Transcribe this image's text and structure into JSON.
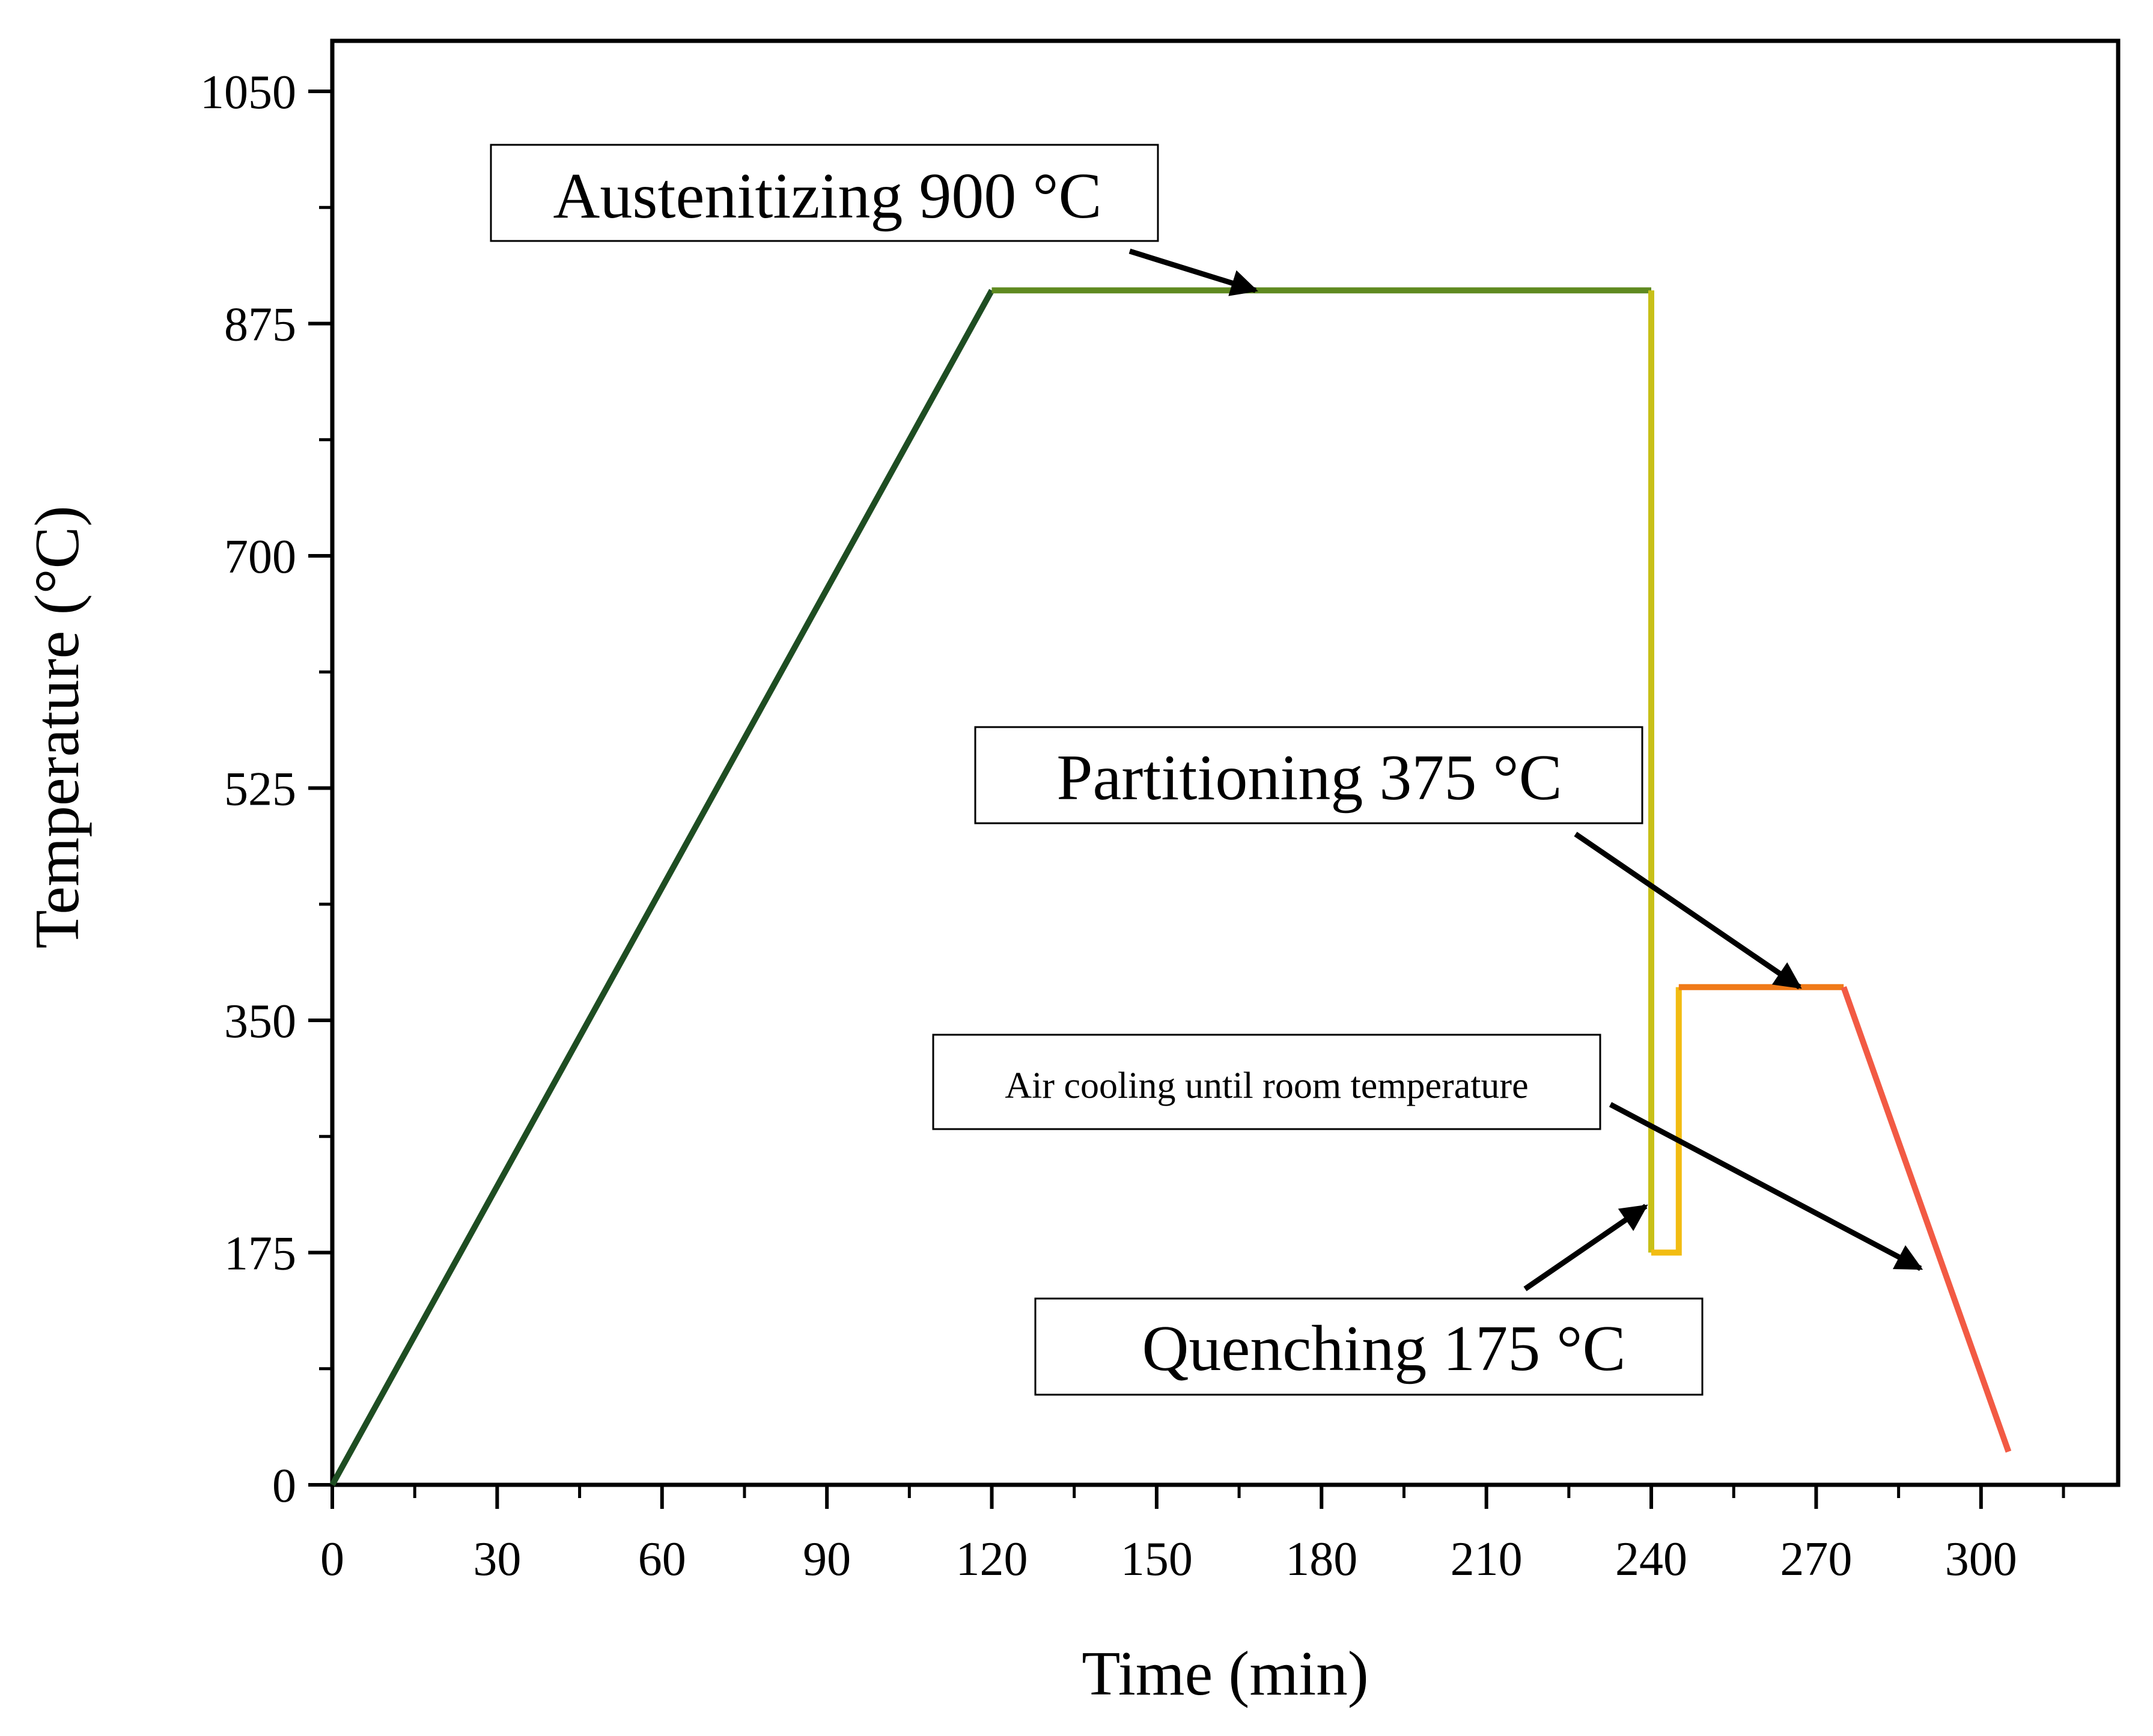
{
  "chart_data": {
    "type": "line",
    "title": "",
    "xlabel": "Time (min)",
    "ylabel": "Temperature (°C)",
    "xlim": [
      0,
      325
    ],
    "ylim": [
      0,
      1100
    ],
    "x_ticks": [
      0,
      30,
      60,
      90,
      120,
      150,
      180,
      210,
      240,
      270,
      300
    ],
    "y_ticks": [
      0,
      175,
      350,
      525,
      700,
      875,
      1050
    ],
    "grid": false,
    "legend": false,
    "series": [
      {
        "name": "Heating",
        "color": "#1e4d22",
        "points": [
          [
            0,
            0
          ],
          [
            120,
            900
          ]
        ]
      },
      {
        "name": "Austenitizing",
        "color": "#5f8a20",
        "points": [
          [
            120,
            900
          ],
          [
            240,
            900
          ]
        ]
      },
      {
        "name": "Quench drop",
        "color": "#c8c018",
        "points": [
          [
            240,
            900
          ],
          [
            240,
            175
          ]
        ]
      },
      {
        "name": "Quenching",
        "color": "#f2bc12",
        "points": [
          [
            240,
            175
          ],
          [
            245,
            175
          ],
          [
            245,
            375
          ]
        ]
      },
      {
        "name": "Partitioning",
        "color": "#f07a18",
        "points": [
          [
            245,
            375
          ],
          [
            275,
            375
          ]
        ]
      },
      {
        "name": "Air cooling",
        "color": "#f25a44",
        "points": [
          [
            275,
            375
          ],
          [
            305,
            25
          ]
        ]
      }
    ],
    "annotations": [
      {
        "text": "Austenitizing 900 °C",
        "size": "large",
        "target": [
          168,
          900
        ]
      },
      {
        "text": "Partitioning 375 °C",
        "size": "large",
        "target": [
          267,
          375
        ]
      },
      {
        "text": "Air cooling until room temperature",
        "size": "small",
        "target": [
          289,
          163
        ]
      },
      {
        "text": "Quenching 175 °C",
        "size": "large",
        "target": [
          239,
          210
        ]
      }
    ]
  }
}
